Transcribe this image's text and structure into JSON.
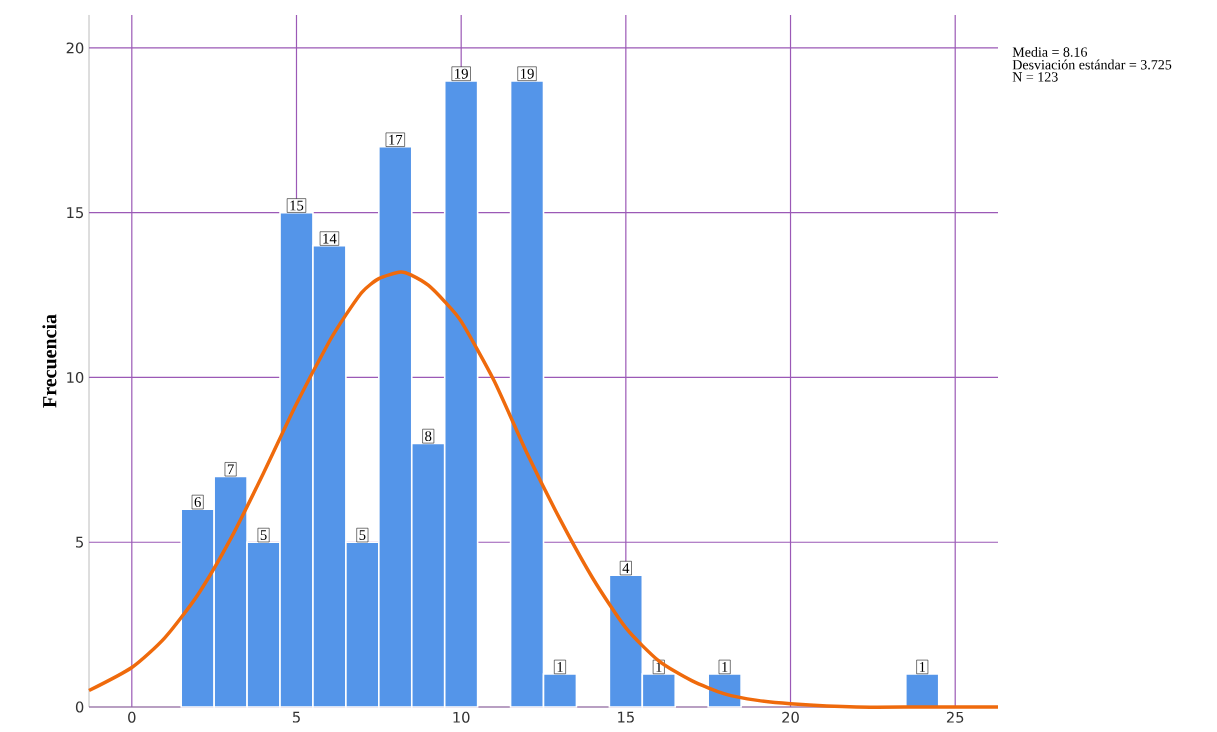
{
  "chart_data": {
    "type": "histogram",
    "ylabel": "Frecuencia",
    "bins": [
      1.5,
      2.5,
      3.5,
      4.5,
      5.5,
      6.5,
      7.5,
      8.5,
      9.5,
      10.5,
      11.5,
      12.5,
      13.5,
      14.5,
      15.5,
      16.5,
      17.5,
      18.5,
      19.5,
      20.5,
      21.5,
      22.5,
      23.5,
      24.5
    ],
    "values": [
      6,
      7,
      5,
      15,
      14,
      5,
      17,
      8,
      19,
      0,
      19,
      1,
      0,
      4,
      1,
      0,
      1,
      0,
      0,
      0,
      0,
      0,
      1
    ],
    "value_labels": [
      "6",
      "7",
      "5",
      "15",
      "14",
      "5",
      "17",
      "8",
      "19",
      null,
      "19",
      "1",
      null,
      "4",
      "1",
      null,
      "1",
      null,
      null,
      null,
      null,
      null,
      "1"
    ],
    "color": "#5495e9",
    "series": [
      {
        "type": "line",
        "color": "#ef6a0c",
        "x": [
          -1.3,
          0,
          1,
          2,
          3,
          4,
          5,
          6,
          6.5,
          7,
          7.5,
          8.16,
          8.5,
          9,
          9.5,
          10,
          11,
          12,
          13,
          14,
          15,
          16,
          17,
          18,
          19,
          20,
          22,
          24,
          26.3
        ],
        "values": [
          0.5,
          1.2,
          2.1,
          3.4,
          5.1,
          7.1,
          9.2,
          11.1,
          11.9,
          12.6,
          13.0,
          13.2,
          13.1,
          12.8,
          12.3,
          11.7,
          9.9,
          7.7,
          5.7,
          3.9,
          2.4,
          1.4,
          0.8,
          0.4,
          0.2,
          0.1,
          0,
          0,
          0
        ]
      }
    ],
    "xlim": [
      -1.3,
      26.3
    ],
    "ylim": [
      0,
      21
    ],
    "xticks": [
      0,
      5,
      10,
      15,
      20,
      25
    ],
    "yticks": [
      0,
      5,
      10,
      15,
      20
    ],
    "grid": true,
    "annotations": [
      "Media = 8.16",
      "Desviación estándar = 3.725",
      "N = 123"
    ]
  }
}
